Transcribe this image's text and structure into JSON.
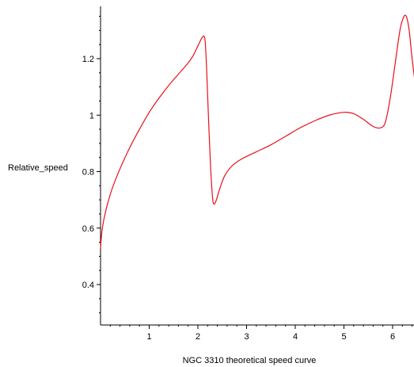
{
  "chart_data": {
    "type": "line",
    "title": "",
    "xlabel": "NGC 3310 theoretical speed curve",
    "ylabel": "Relative_speed",
    "xlim": [
      0,
      6.5
    ],
    "ylim": [
      0.28,
      1.38
    ],
    "x_ticks": [
      1,
      2,
      3,
      4,
      5,
      6
    ],
    "y_ticks": [
      0.4,
      0.6,
      0.8,
      1,
      1.2
    ],
    "x_tick_labels": [
      "1",
      "2",
      "3",
      "4",
      "5",
      "6"
    ],
    "y_tick_labels": [
      "0.4",
      "0.6",
      "0.8",
      "1",
      "1.2"
    ],
    "x_minor_step": 0.2,
    "y_minor_step": 0.05,
    "grid": false,
    "legend": "none",
    "series": [
      {
        "color": "#e8101a",
        "points": [
          [
            0.0,
            0.53
          ],
          [
            0.03,
            0.59
          ],
          [
            0.08,
            0.64
          ],
          [
            0.15,
            0.69
          ],
          [
            0.25,
            0.745
          ],
          [
            0.4,
            0.81
          ],
          [
            0.6,
            0.885
          ],
          [
            0.8,
            0.95
          ],
          [
            1.0,
            1.01
          ],
          [
            1.2,
            1.06
          ],
          [
            1.4,
            1.105
          ],
          [
            1.6,
            1.145
          ],
          [
            1.8,
            1.185
          ],
          [
            1.9,
            1.21
          ],
          [
            2.0,
            1.245
          ],
          [
            2.07,
            1.27
          ],
          [
            2.12,
            1.28
          ],
          [
            2.15,
            1.26
          ],
          [
            2.18,
            1.16
          ],
          [
            2.22,
            0.98
          ],
          [
            2.26,
            0.82
          ],
          [
            2.3,
            0.71
          ],
          [
            2.33,
            0.685
          ],
          [
            2.38,
            0.7
          ],
          [
            2.45,
            0.74
          ],
          [
            2.55,
            0.785
          ],
          [
            2.7,
            0.82
          ],
          [
            2.9,
            0.845
          ],
          [
            3.2,
            0.87
          ],
          [
            3.5,
            0.895
          ],
          [
            3.8,
            0.925
          ],
          [
            4.1,
            0.955
          ],
          [
            4.4,
            0.98
          ],
          [
            4.7,
            1.0
          ],
          [
            5.0,
            1.01
          ],
          [
            5.2,
            1.005
          ],
          [
            5.4,
            0.985
          ],
          [
            5.6,
            0.96
          ],
          [
            5.75,
            0.955
          ],
          [
            5.85,
            0.975
          ],
          [
            5.95,
            1.06
          ],
          [
            6.05,
            1.18
          ],
          [
            6.15,
            1.3
          ],
          [
            6.22,
            1.345
          ],
          [
            6.28,
            1.35
          ],
          [
            6.34,
            1.3
          ],
          [
            6.4,
            1.2
          ],
          [
            6.46,
            1.12
          ],
          [
            6.5,
            1.085
          ]
        ]
      }
    ]
  }
}
